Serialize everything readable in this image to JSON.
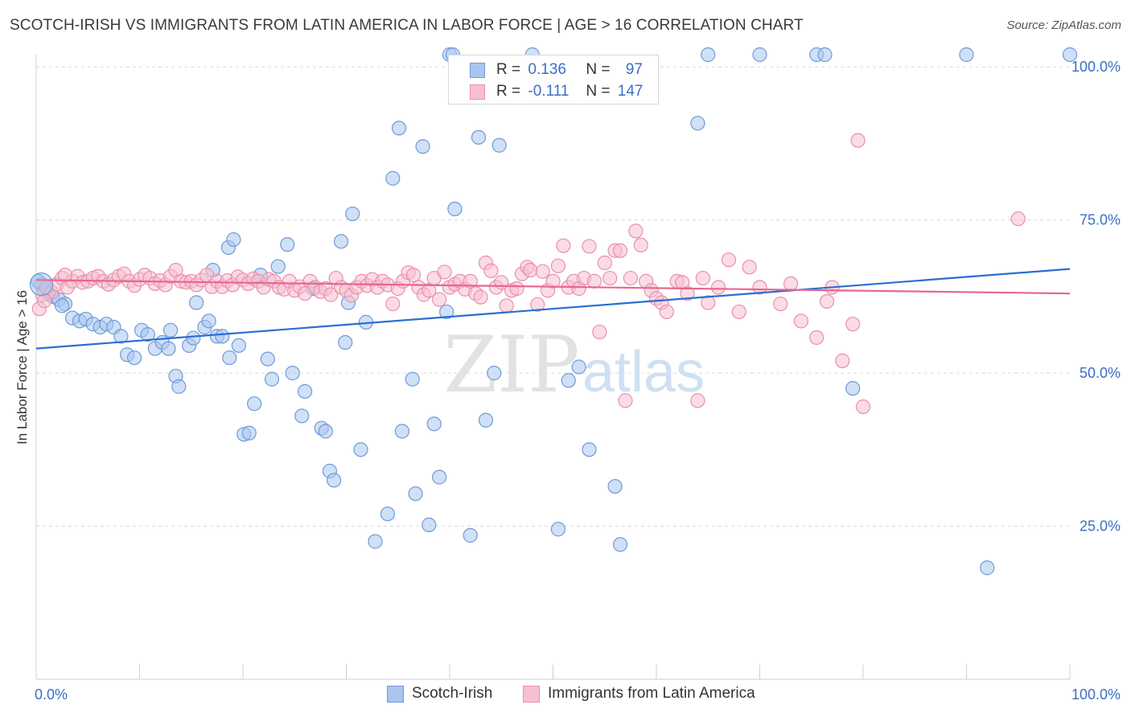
{
  "title": "SCOTCH-IRISH VS IMMIGRANTS FROM LATIN AMERICA IN LABOR FORCE | AGE > 16 CORRELATION CHART",
  "source": "Source: ZipAtlas.com",
  "watermark": {
    "zip": "ZIP",
    "atlas": "atlas"
  },
  "legend": {
    "r_label": "R =",
    "n_label": "N =",
    "rows": [
      {
        "r": "0.136",
        "n": "97"
      },
      {
        "r": "-0.111",
        "n": "147"
      }
    ]
  },
  "colors": {
    "blue_fill": "#a9c6ef",
    "blue_stroke": "#6f9ad8",
    "blue_line": "#2a6ed4",
    "pink_fill": "#f6bfd0",
    "pink_stroke": "#ec8eab",
    "pink_line": "#e8678f",
    "axis_text": "#3b6fc4",
    "grid": "#dcdcdc"
  },
  "chart_data": {
    "type": "scatter",
    "title": "SCOTCH-IRISH VS IMMIGRANTS FROM LATIN AMERICA IN LABOR FORCE | AGE > 16 CORRELATION CHART",
    "xlabel": "",
    "ylabel": "In Labor Force | Age > 16",
    "xlim": [
      0,
      100
    ],
    "ylim": [
      0,
      102
    ],
    "x_tick_labels": [
      "0.0%",
      "100.0%"
    ],
    "y_ticks": [
      25,
      50,
      75,
      100
    ],
    "y_tick_labels": [
      "25.0%",
      "50.0%",
      "75.0%",
      "100.0%"
    ],
    "grid": true,
    "legend_placement": "bottom",
    "series": [
      {
        "name": "Scotch-Irish",
        "color": "#a9c6ef",
        "trend": {
          "x": [
            0,
            100
          ],
          "y": [
            54.0,
            67.0
          ]
        },
        "points": [
          [
            0.5,
            64.5
          ],
          [
            0.8,
            63.5
          ],
          [
            1.2,
            63.0
          ],
          [
            1.6,
            62.5
          ],
          [
            2.2,
            62.0
          ],
          [
            2.8,
            61.3
          ],
          [
            3.5,
            59.0
          ],
          [
            4.2,
            58.5
          ],
          [
            4.8,
            58.8
          ],
          [
            5.5,
            58.0
          ],
          [
            6.2,
            57.5
          ],
          [
            6.8,
            58.0
          ],
          [
            7.5,
            57.5
          ],
          [
            8.2,
            56.0
          ],
          [
            8.8,
            53.0
          ],
          [
            9.5,
            52.5
          ],
          [
            10.2,
            57.0
          ],
          [
            10.8,
            56.3
          ],
          [
            11.5,
            54.0
          ],
          [
            12.2,
            55.0
          ],
          [
            12.8,
            54.0
          ],
          [
            13.0,
            57.0
          ],
          [
            13.5,
            49.5
          ],
          [
            13.8,
            47.8
          ],
          [
            14.8,
            54.5
          ],
          [
            15.2,
            55.7
          ],
          [
            15.5,
            61.5
          ],
          [
            16.3,
            57.5
          ],
          [
            16.7,
            58.5
          ],
          [
            17.1,
            66.8
          ],
          [
            17.5,
            56.0
          ],
          [
            18.0,
            56.0
          ],
          [
            18.7,
            52.5
          ],
          [
            18.6,
            70.5
          ],
          [
            19.1,
            71.8
          ],
          [
            19.6,
            54.5
          ],
          [
            20.1,
            40.0
          ],
          [
            20.6,
            40.2
          ],
          [
            21.1,
            45.0
          ],
          [
            21.7,
            66.0
          ],
          [
            22.4,
            52.3
          ],
          [
            22.8,
            49.0
          ],
          [
            23.4,
            67.4
          ],
          [
            24.3,
            71.0
          ],
          [
            24.8,
            50.0
          ],
          [
            25.7,
            43.0
          ],
          [
            26.0,
            47.0
          ],
          [
            26.8,
            63.8
          ],
          [
            27.6,
            41.0
          ],
          [
            28.0,
            40.5
          ],
          [
            28.4,
            34.0
          ],
          [
            28.8,
            32.5
          ],
          [
            29.5,
            71.5
          ],
          [
            29.9,
            55.0
          ],
          [
            30.2,
            61.5
          ],
          [
            30.6,
            76.0
          ],
          [
            31.4,
            37.5
          ],
          [
            31.9,
            58.3
          ],
          [
            32.8,
            22.5
          ],
          [
            34.0,
            27.0
          ],
          [
            34.5,
            81.8
          ],
          [
            35.1,
            90.0
          ],
          [
            35.4,
            40.5
          ],
          [
            36.4,
            49.0
          ],
          [
            36.7,
            30.3
          ],
          [
            37.4,
            87.0
          ],
          [
            38.0,
            25.2
          ],
          [
            38.5,
            41.7
          ],
          [
            39.0,
            33.0
          ],
          [
            39.7,
            60.0
          ],
          [
            40.0,
            102.0
          ],
          [
            40.5,
            76.8
          ],
          [
            42.0,
            23.5
          ],
          [
            42.8,
            88.5
          ],
          [
            43.5,
            42.3
          ],
          [
            44.3,
            50.0
          ],
          [
            44.8,
            87.2
          ],
          [
            48.0,
            102.0
          ],
          [
            50.5,
            24.5
          ],
          [
            51.5,
            48.8
          ],
          [
            52.5,
            51.0
          ],
          [
            53.5,
            37.5
          ],
          [
            56.0,
            31.5
          ],
          [
            56.5,
            22.0
          ],
          [
            64.0,
            90.8
          ],
          [
            70.0,
            102.0
          ],
          [
            75.5,
            102.0
          ],
          [
            76.3,
            102.0
          ],
          [
            79.0,
            47.5
          ],
          [
            92.0,
            18.2
          ],
          [
            100.0,
            102.0
          ],
          [
            0.2,
            65.0
          ],
          [
            1.0,
            64.0
          ],
          [
            2.5,
            61.0
          ],
          [
            40.3,
            102.0
          ],
          [
            65.0,
            102.0
          ],
          [
            90.0,
            102.0
          ]
        ]
      },
      {
        "name": "Immigrants from Latin America",
        "color": "#f6bfd0",
        "trend": {
          "x": [
            0,
            100
          ],
          "y": [
            65.2,
            63.0
          ]
        },
        "points": [
          [
            0.3,
            60.5
          ],
          [
            0.6,
            62.8
          ],
          [
            1.0,
            64.0
          ],
          [
            1.5,
            63.2
          ],
          [
            2.0,
            64.5
          ],
          [
            2.5,
            65.5
          ],
          [
            3.0,
            64.0
          ],
          [
            3.5,
            65.0
          ],
          [
            4.0,
            65.8
          ],
          [
            4.5,
            64.8
          ],
          [
            5.0,
            65.0
          ],
          [
            5.5,
            65.5
          ],
          [
            6.0,
            65.8
          ],
          [
            6.5,
            65.0
          ],
          [
            7.0,
            64.5
          ],
          [
            7.5,
            65.2
          ],
          [
            8.0,
            65.8
          ],
          [
            8.5,
            66.2
          ],
          [
            9.0,
            65.0
          ],
          [
            9.5,
            64.3
          ],
          [
            10.0,
            65.3
          ],
          [
            10.5,
            66.0
          ],
          [
            11.0,
            65.5
          ],
          [
            11.5,
            64.6
          ],
          [
            12.0,
            65.1
          ],
          [
            12.5,
            64.4
          ],
          [
            13.0,
            65.8
          ],
          [
            13.5,
            66.8
          ],
          [
            14.0,
            65.0
          ],
          [
            14.5,
            64.8
          ],
          [
            15.0,
            65.0
          ],
          [
            15.5,
            64.4
          ],
          [
            16.0,
            65.2
          ],
          [
            16.5,
            66.0
          ],
          [
            17.0,
            64.1
          ],
          [
            17.5,
            65.0
          ],
          [
            18.0,
            64.1
          ],
          [
            18.5,
            65.1
          ],
          [
            19.0,
            64.4
          ],
          [
            19.5,
            65.7
          ],
          [
            20.0,
            65.2
          ],
          [
            20.5,
            64.6
          ],
          [
            21.0,
            65.4
          ],
          [
            21.5,
            65.0
          ],
          [
            22.0,
            64.0
          ],
          [
            22.5,
            65.3
          ],
          [
            23.0,
            65.0
          ],
          [
            23.5,
            64.0
          ],
          [
            24.0,
            63.7
          ],
          [
            24.5,
            65.0
          ],
          [
            25.0,
            63.5
          ],
          [
            25.5,
            64.1
          ],
          [
            26.0,
            63.0
          ],
          [
            26.5,
            65.0
          ],
          [
            27.0,
            64.0
          ],
          [
            27.5,
            63.3
          ],
          [
            28.0,
            63.8
          ],
          [
            28.5,
            62.8
          ],
          [
            29.0,
            65.5
          ],
          [
            29.5,
            64.0
          ],
          [
            30.0,
            63.5
          ],
          [
            30.5,
            62.7
          ],
          [
            31.0,
            64.0
          ],
          [
            31.5,
            65.0
          ],
          [
            32.0,
            64.3
          ],
          [
            32.5,
            65.3
          ],
          [
            33.0,
            64.0
          ],
          [
            33.5,
            65.0
          ],
          [
            34.0,
            64.4
          ],
          [
            34.5,
            61.3
          ],
          [
            35.0,
            63.8
          ],
          [
            35.5,
            65.0
          ],
          [
            36.0,
            66.4
          ],
          [
            36.5,
            66.0
          ],
          [
            37.0,
            64.0
          ],
          [
            37.5,
            62.8
          ],
          [
            38.0,
            63.5
          ],
          [
            38.5,
            65.5
          ],
          [
            39.0,
            62.0
          ],
          [
            39.5,
            66.5
          ],
          [
            40.0,
            64.0
          ],
          [
            40.5,
            64.5
          ],
          [
            41.0,
            65.0
          ],
          [
            41.5,
            63.7
          ],
          [
            42.0,
            65.0
          ],
          [
            42.5,
            63.0
          ],
          [
            43.0,
            62.4
          ],
          [
            43.5,
            68.0
          ],
          [
            44.0,
            66.7
          ],
          [
            44.5,
            64.0
          ],
          [
            45.0,
            64.8
          ],
          [
            45.5,
            61.0
          ],
          [
            46.0,
            63.5
          ],
          [
            46.5,
            63.8
          ],
          [
            47.0,
            66.2
          ],
          [
            47.5,
            67.3
          ],
          [
            47.8,
            66.8
          ],
          [
            48.5,
            61.2
          ],
          [
            49.0,
            66.6
          ],
          [
            49.5,
            63.5
          ],
          [
            50.0,
            65.0
          ],
          [
            50.5,
            67.5
          ],
          [
            51.0,
            70.8
          ],
          [
            51.5,
            64.0
          ],
          [
            52.0,
            65.0
          ],
          [
            52.5,
            63.8
          ],
          [
            53.0,
            65.5
          ],
          [
            53.5,
            70.7
          ],
          [
            54.0,
            65.0
          ],
          [
            54.5,
            56.7
          ],
          [
            55.0,
            68.0
          ],
          [
            55.5,
            65.5
          ],
          [
            56.0,
            70.0
          ],
          [
            56.5,
            70.0
          ],
          [
            57.0,
            45.5
          ],
          [
            57.5,
            65.5
          ],
          [
            58.0,
            73.2
          ],
          [
            58.5,
            70.9
          ],
          [
            59.0,
            65.0
          ],
          [
            59.5,
            63.5
          ],
          [
            60.0,
            62.2
          ],
          [
            60.5,
            61.5
          ],
          [
            61.0,
            60.0
          ],
          [
            62.0,
            65.0
          ],
          [
            62.5,
            64.8
          ],
          [
            63.0,
            63.0
          ],
          [
            64.0,
            45.5
          ],
          [
            64.5,
            65.5
          ],
          [
            65.0,
            61.5
          ],
          [
            66.0,
            64.0
          ],
          [
            67.0,
            68.5
          ],
          [
            68.0,
            60.0
          ],
          [
            69.0,
            67.3
          ],
          [
            70.0,
            64.0
          ],
          [
            72.0,
            61.3
          ],
          [
            73.0,
            64.6
          ],
          [
            74.0,
            58.5
          ],
          [
            75.5,
            55.8
          ],
          [
            76.5,
            61.7
          ],
          [
            78.0,
            52.0
          ],
          [
            79.0,
            58.0
          ],
          [
            80.0,
            44.5
          ],
          [
            77.0,
            64.0
          ],
          [
            79.5,
            88.0
          ],
          [
            95.0,
            75.2
          ],
          [
            0.8,
            61.8
          ],
          [
            2.8,
            66.0
          ]
        ]
      }
    ]
  }
}
